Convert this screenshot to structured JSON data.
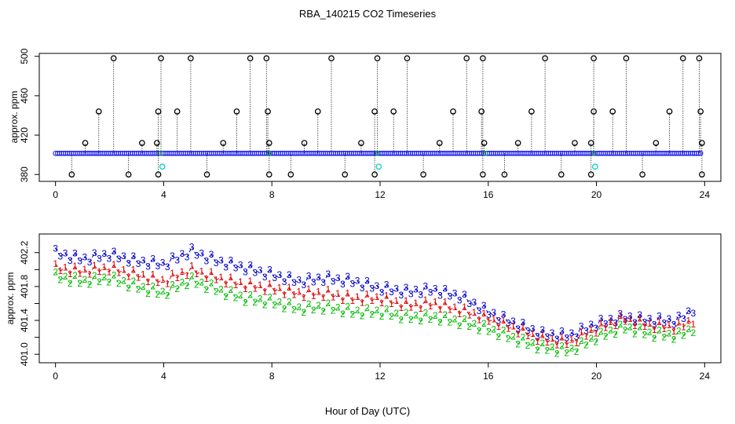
{
  "title": "RBA_140215  CO2 Timeseries",
  "xlabel": "Hour of Day (UTC)",
  "chart_data": [
    {
      "type": "scatter",
      "ylabel": "approx. ppm",
      "xlim": [
        -0.6,
        24.6
      ],
      "ylim": [
        373,
        503
      ],
      "xticks": [
        0,
        4,
        8,
        12,
        16,
        20,
        24
      ],
      "yticks": [
        380,
        420,
        460,
        500
      ],
      "ytick_labels": [
        "380",
        "420",
        "460",
        "500"
      ],
      "baseline": 401.5,
      "outliers_high": [
        {
          "x": 2.15,
          "y": 498
        },
        {
          "x": 3.9,
          "y": 498
        },
        {
          "x": 5.0,
          "y": 498
        },
        {
          "x": 7.2,
          "y": 498
        },
        {
          "x": 7.8,
          "y": 498
        },
        {
          "x": 10.2,
          "y": 498
        },
        {
          "x": 11.9,
          "y": 498
        },
        {
          "x": 13.0,
          "y": 498
        },
        {
          "x": 15.2,
          "y": 498
        },
        {
          "x": 15.8,
          "y": 498
        },
        {
          "x": 18.1,
          "y": 498
        },
        {
          "x": 19.9,
          "y": 498
        },
        {
          "x": 21.1,
          "y": 498
        },
        {
          "x": 23.2,
          "y": 498
        },
        {
          "x": 23.8,
          "y": 498
        }
      ],
      "outliers_mid": [
        {
          "x": 1.6,
          "y": 444
        },
        {
          "x": 3.8,
          "y": 444
        },
        {
          "x": 4.5,
          "y": 444
        },
        {
          "x": 6.7,
          "y": 444
        },
        {
          "x": 7.85,
          "y": 444
        },
        {
          "x": 9.7,
          "y": 444
        },
        {
          "x": 11.8,
          "y": 444
        },
        {
          "x": 12.5,
          "y": 444
        },
        {
          "x": 14.7,
          "y": 444
        },
        {
          "x": 15.75,
          "y": 444
        },
        {
          "x": 17.6,
          "y": 444
        },
        {
          "x": 19.9,
          "y": 444
        },
        {
          "x": 20.6,
          "y": 444
        },
        {
          "x": 22.7,
          "y": 444
        },
        {
          "x": 23.85,
          "y": 444
        }
      ],
      "outliers_low1": [
        {
          "x": 1.1,
          "y": 412
        },
        {
          "x": 3.2,
          "y": 412
        },
        {
          "x": 3.75,
          "y": 412
        },
        {
          "x": 6.2,
          "y": 412
        },
        {
          "x": 7.9,
          "y": 412
        },
        {
          "x": 9.2,
          "y": 412
        },
        {
          "x": 11.3,
          "y": 412
        },
        {
          "x": 14.2,
          "y": 412
        },
        {
          "x": 15.85,
          "y": 412
        },
        {
          "x": 17.1,
          "y": 412
        },
        {
          "x": 19.2,
          "y": 412
        },
        {
          "x": 19.8,
          "y": 412
        },
        {
          "x": 22.2,
          "y": 412
        },
        {
          "x": 23.9,
          "y": 412
        }
      ],
      "outliers_low": [
        {
          "x": 0.6,
          "y": 380
        },
        {
          "x": 2.7,
          "y": 380
        },
        {
          "x": 3.8,
          "y": 380
        },
        {
          "x": 5.6,
          "y": 380
        },
        {
          "x": 7.9,
          "y": 380
        },
        {
          "x": 8.7,
          "y": 380
        },
        {
          "x": 10.7,
          "y": 380
        },
        {
          "x": 11.8,
          "y": 380
        },
        {
          "x": 13.6,
          "y": 380
        },
        {
          "x": 15.8,
          "y": 380
        },
        {
          "x": 16.6,
          "y": 380
        },
        {
          "x": 18.7,
          "y": 380
        },
        {
          "x": 19.8,
          "y": 380
        },
        {
          "x": 21.7,
          "y": 380
        },
        {
          "x": 23.9,
          "y": 380
        }
      ],
      "cyan_points": [
        {
          "x": 3.95,
          "y": 388
        },
        {
          "x": 11.95,
          "y": 388
        },
        {
          "x": 19.95,
          "y": 388
        }
      ]
    },
    {
      "type": "line",
      "ylabel": "approx. ppm",
      "xlim": [
        -0.6,
        24.6
      ],
      "ylim": [
        400.9,
        402.42
      ],
      "xticks": [
        0,
        4,
        8,
        12,
        16,
        20,
        24
      ],
      "yticks": [
        401.0,
        401.2,
        401.4,
        401.6,
        401.8,
        402.0,
        402.2
      ],
      "ytick_labels": [
        "401.0",
        "",
        "401.4",
        "",
        "401.8",
        "",
        "402.2"
      ],
      "series": [
        {
          "name": "3",
          "color": "#0000cc",
          "x": [
            0,
            1,
            2,
            3,
            4,
            5,
            6,
            7,
            8,
            9,
            10,
            11,
            12,
            13,
            14,
            15,
            16,
            17,
            18,
            19,
            20,
            21,
            22,
            23,
            23.7
          ],
          "values": [
            402.2,
            402.12,
            402.18,
            402.1,
            402.06,
            402.22,
            402.1,
            402.02,
            401.94,
            401.86,
            401.9,
            401.86,
            401.78,
            401.74,
            401.76,
            401.68,
            401.5,
            401.36,
            401.24,
            401.22,
            401.36,
            401.44,
            401.4,
            401.4,
            401.56
          ]
        },
        {
          "name": "1",
          "color": "#dd0000",
          "x": [
            0,
            1,
            2,
            3,
            4,
            5,
            6,
            7,
            8,
            9,
            10,
            11,
            12,
            13,
            14,
            15,
            16,
            17,
            18,
            19,
            20,
            21,
            22,
            23,
            23.7
          ],
          "values": [
            402.02,
            401.98,
            402.02,
            401.94,
            401.86,
            402.0,
            401.9,
            401.82,
            401.78,
            401.72,
            401.72,
            401.66,
            401.66,
            401.58,
            401.6,
            401.52,
            401.42,
            401.3,
            401.18,
            401.14,
            401.3,
            401.42,
            401.34,
            401.32,
            401.42
          ]
        },
        {
          "name": "2",
          "color": "#00bb00",
          "x": [
            0,
            1,
            2,
            3,
            4,
            5,
            6,
            7,
            8,
            9,
            10,
            11,
            12,
            13,
            14,
            15,
            16,
            17,
            18,
            19,
            20,
            21,
            22,
            23,
            23.7
          ],
          "values": [
            401.92,
            401.86,
            401.9,
            401.8,
            401.72,
            401.88,
            401.76,
            401.66,
            401.62,
            401.54,
            401.56,
            401.5,
            401.5,
            401.44,
            401.44,
            401.38,
            401.3,
            401.18,
            401.08,
            401.04,
            401.2,
            401.32,
            401.24,
            401.22,
            401.32
          ]
        }
      ]
    }
  ]
}
